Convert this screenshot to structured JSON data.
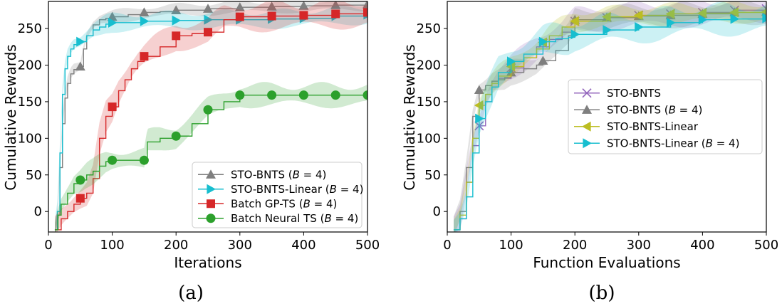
{
  "chart_data": [
    {
      "type": "line",
      "panel": "left",
      "caption": "(a)",
      "xlabel": "Iterations",
      "ylabel": "Cumulative Rewards",
      "xlim": [
        0,
        500
      ],
      "ylim": [
        -28,
        287
      ],
      "xticks": [
        0,
        100,
        200,
        300,
        400,
        500
      ],
      "yticks": [
        0,
        50,
        100,
        150,
        200,
        250
      ],
      "legend_position": "lower-right",
      "series": [
        {
          "name": "STO-BNTS (B = 4)",
          "legend_label": "STO-BNTS (",
          "legend_var": "B",
          "legend_suffix": " = 4)",
          "color": "#7f7f7f",
          "marker": "triangle-up",
          "x": [
            10,
            14,
            18,
            22,
            26,
            30,
            35,
            40,
            45,
            50,
            55,
            60,
            70,
            80,
            90,
            100,
            125,
            150,
            175,
            200,
            250,
            300,
            350,
            400,
            450,
            500
          ],
          "y": [
            -25,
            -5,
            60,
            120,
            155,
            175,
            188,
            194,
            196,
            198,
            222,
            240,
            255,
            262,
            264,
            266,
            269,
            272,
            273,
            275,
            277,
            279,
            280,
            281,
            282,
            283
          ],
          "band": 10,
          "markers_at": [
            50,
            100,
            150,
            200,
            250,
            300,
            350,
            400,
            450,
            500
          ]
        },
        {
          "name": "STO-BNTS-Linear (B = 4)",
          "legend_label": "STO-BNTS-Linear (",
          "legend_var": "B",
          "legend_suffix": " = 4)",
          "color": "#17becf",
          "marker": "triangle-right",
          "x": [
            10,
            14,
            18,
            22,
            26,
            30,
            35,
            40,
            45,
            50,
            60,
            70,
            80,
            90,
            100,
            150,
            200,
            250,
            300,
            350,
            400,
            450,
            500
          ],
          "y": [
            -25,
            0,
            80,
            160,
            195,
            212,
            222,
            228,
            230,
            232,
            240,
            248,
            252,
            256,
            258,
            260,
            261,
            262,
            262,
            263,
            264,
            267,
            269
          ],
          "band": 14,
          "markers_at": [
            50,
            100,
            150,
            200,
            250,
            300,
            350,
            400,
            450,
            500
          ]
        },
        {
          "name": "Batch GP-TS (B = 4)",
          "legend_label": "Batch GP-TS (",
          "legend_var": "B",
          "legend_suffix": " = 4)",
          "color": "#d62728",
          "marker": "square",
          "x": [
            10,
            20,
            30,
            40,
            50,
            60,
            70,
            80,
            90,
            100,
            110,
            120,
            130,
            140,
            150,
            175,
            200,
            225,
            250,
            275,
            300,
            350,
            400,
            450,
            500
          ],
          "y": [
            -25,
            -10,
            0,
            10,
            18,
            25,
            45,
            100,
            130,
            143,
            165,
            180,
            195,
            205,
            212,
            225,
            240,
            243,
            245,
            262,
            266,
            267,
            268,
            270,
            272
          ],
          "band": 22,
          "markers_at": [
            50,
            100,
            150,
            200,
            250,
            300,
            350,
            400,
            450,
            500
          ]
        },
        {
          "name": "Batch Neural TS (B = 4)",
          "legend_label": "Batch Neural TS (",
          "legend_var": "B",
          "legend_suffix": " = 4)",
          "color": "#2ca02c",
          "marker": "circle",
          "x": [
            10,
            15,
            20,
            30,
            40,
            50,
            60,
            70,
            80,
            90,
            100,
            150,
            155,
            175,
            200,
            225,
            250,
            275,
            300,
            350,
            400,
            450,
            500
          ],
          "y": [
            -25,
            -5,
            10,
            25,
            38,
            43,
            50,
            55,
            62,
            68,
            70,
            70,
            95,
            100,
            103,
            120,
            139,
            150,
            159,
            159,
            159,
            159,
            159
          ],
          "band": 18,
          "markers_at": [
            50,
            100,
            150,
            200,
            250,
            300,
            350,
            400,
            450,
            500
          ]
        }
      ]
    },
    {
      "type": "line",
      "panel": "right",
      "caption": "(b)",
      "xlabel": "Function Evaluations",
      "ylabel": "Cumulative Rewards",
      "xlim": [
        0,
        500
      ],
      "ylim": [
        -28,
        287
      ],
      "xticks": [
        0,
        100,
        200,
        300,
        400,
        500
      ],
      "yticks": [
        0,
        50,
        100,
        150,
        200,
        250
      ],
      "legend_position": "center-right",
      "series": [
        {
          "name": "STO-BNTS",
          "legend_label": "STO-BNTS",
          "legend_var": "",
          "legend_suffix": "",
          "color": "#9467bd",
          "marker": "x",
          "x": [
            10,
            20,
            30,
            40,
            50,
            60,
            70,
            80,
            100,
            120,
            140,
            160,
            180,
            200,
            250,
            300,
            350,
            400,
            450,
            500
          ],
          "y": [
            -25,
            -10,
            40,
            90,
            117,
            150,
            170,
            182,
            196,
            210,
            225,
            235,
            245,
            260,
            265,
            268,
            270,
            272,
            275,
            277
          ],
          "band": 20,
          "markers_at": [
            50,
            100,
            150,
            200,
            250,
            300,
            350,
            400,
            450,
            500
          ]
        },
        {
          "name": "STO-BNTS (B = 4)",
          "legend_label": "STO-BNTS (",
          "legend_var": "B",
          "legend_suffix": " = 4)",
          "color": "#7f7f7f",
          "marker": "triangle-up",
          "x": [
            10,
            20,
            30,
            40,
            50,
            60,
            70,
            80,
            90,
            100,
            120,
            140,
            150,
            170,
            190,
            200,
            250,
            300,
            350,
            400,
            450,
            500
          ],
          "y": [
            -25,
            0,
            60,
            130,
            166,
            172,
            178,
            180,
            183,
            190,
            195,
            200,
            206,
            220,
            240,
            262,
            265,
            267,
            268,
            270,
            272,
            273
          ],
          "band": 18,
          "markers_at": [
            50,
            100,
            150,
            200,
            250,
            300,
            350,
            400,
            450,
            500
          ]
        },
        {
          "name": "STO-BNTS-Linear",
          "legend_label": "STO-BNTS-Linear",
          "legend_var": "",
          "legend_suffix": "",
          "color": "#bcbd22",
          "marker": "triangle-left",
          "x": [
            10,
            20,
            30,
            40,
            50,
            60,
            70,
            80,
            100,
            120,
            140,
            160,
            180,
            200,
            250,
            300,
            350,
            400,
            450,
            500
          ],
          "y": [
            -25,
            -5,
            40,
            100,
            145,
            160,
            175,
            185,
            198,
            210,
            222,
            240,
            252,
            260,
            266,
            268,
            270,
            271,
            272,
            273
          ],
          "band": 16,
          "markers_at": [
            50,
            100,
            150,
            200,
            250,
            300,
            350,
            400,
            450,
            500
          ]
        },
        {
          "name": "STO-BNTS-Linear (B = 4)",
          "legend_label": "STO-BNTS-Linear (",
          "legend_var": "B",
          "legend_suffix": " = 4)",
          "color": "#17becf",
          "marker": "triangle-right",
          "x": [
            10,
            20,
            30,
            40,
            50,
            60,
            70,
            80,
            100,
            120,
            150,
            170,
            190,
            200,
            250,
            300,
            350,
            400,
            450,
            500
          ],
          "y": [
            -25,
            -10,
            20,
            80,
            127,
            150,
            170,
            190,
            205,
            215,
            232,
            236,
            238,
            242,
            248,
            252,
            258,
            262,
            263,
            264
          ],
          "band": 24,
          "markers_at": [
            50,
            100,
            150,
            200,
            250,
            300,
            350,
            400,
            450,
            500
          ]
        }
      ]
    }
  ]
}
